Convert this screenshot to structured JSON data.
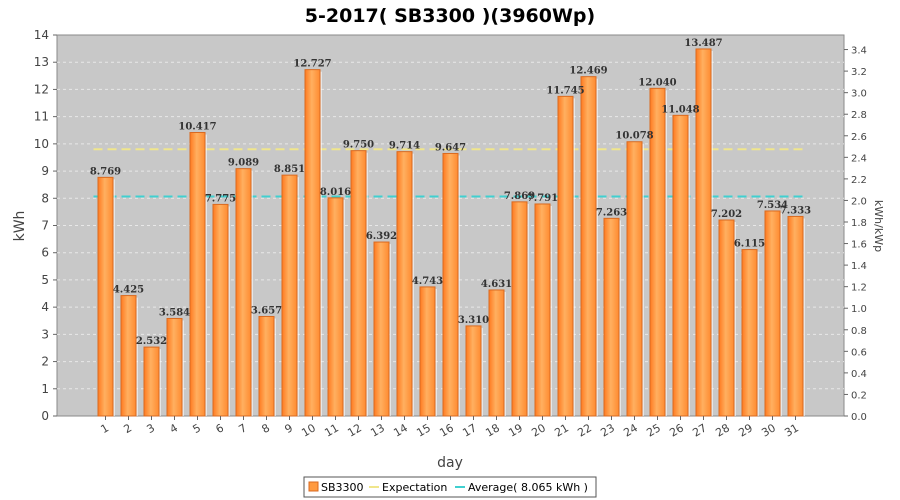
{
  "chart_data": {
    "type": "bar",
    "title": "5-2017( SB3300 )(3960Wp)",
    "xlabel": "day",
    "ylabel": "kWh",
    "ylabel_right": "kWh/kWp",
    "ylim": [
      0,
      14
    ],
    "ylim_right": [
      0,
      3.535
    ],
    "y_ticks": [
      0,
      1,
      2,
      3,
      4,
      5,
      6,
      7,
      8,
      9,
      10,
      11,
      12,
      13,
      14
    ],
    "y_ticks_right": [
      "0.0",
      "0.2",
      "0.4",
      "0.6",
      "0.8",
      "1.0",
      "1.2",
      "1.4",
      "1.6",
      "1.8",
      "2.0",
      "2.2",
      "2.4",
      "2.6",
      "2.8",
      "3.0",
      "3.2",
      "3.4"
    ],
    "categories": [
      "1",
      "2",
      "3",
      "4",
      "5",
      "6",
      "7",
      "8",
      "9",
      "10",
      "11",
      "12",
      "13",
      "14",
      "15",
      "16",
      "17",
      "18",
      "19",
      "20",
      "21",
      "22",
      "23",
      "24",
      "25",
      "26",
      "27",
      "28",
      "29",
      "30",
      "31"
    ],
    "series": [
      {
        "name": "SB3300",
        "values": [
          8.769,
          4.425,
          2.532,
          3.584,
          10.417,
          7.775,
          9.089,
          3.657,
          8.851,
          12.727,
          8.016,
          9.75,
          6.392,
          9.714,
          4.743,
          9.647,
          3.31,
          4.631,
          7.869,
          7.791,
          11.745,
          12.469,
          7.263,
          10.078,
          12.04,
          11.048,
          13.487,
          7.202,
          6.115,
          7.534,
          7.333
        ],
        "labels": [
          "8.769",
          "4.425",
          "2.532",
          "3.584",
          "10.417",
          "7.775",
          "9.089",
          "3.657",
          "8.851",
          "12.727",
          "8.016",
          "9.750",
          "6.392",
          "9.714",
          "4.743",
          "9.647",
          "3.310",
          "4.631",
          "7.869",
          "7.791",
          "11.745",
          "12.469",
          "7.263",
          "10.078",
          "12.040",
          "11.048",
          "13.487",
          "7.202",
          "6.115",
          "7.534",
          "7.333"
        ]
      }
    ],
    "expectation": {
      "name": "Expectation",
      "value": 9.8,
      "color": "#f0e68c"
    },
    "average": {
      "name": "Average( 8.065 kWh )",
      "value": 8.065,
      "color": "#40d0d0"
    },
    "grid": true,
    "legend_position": "bottom-center",
    "colors": {
      "bar_fill": "#ff9a40",
      "bar_edge": "#d96a20",
      "plot_bg": "#c8c8c8"
    }
  }
}
